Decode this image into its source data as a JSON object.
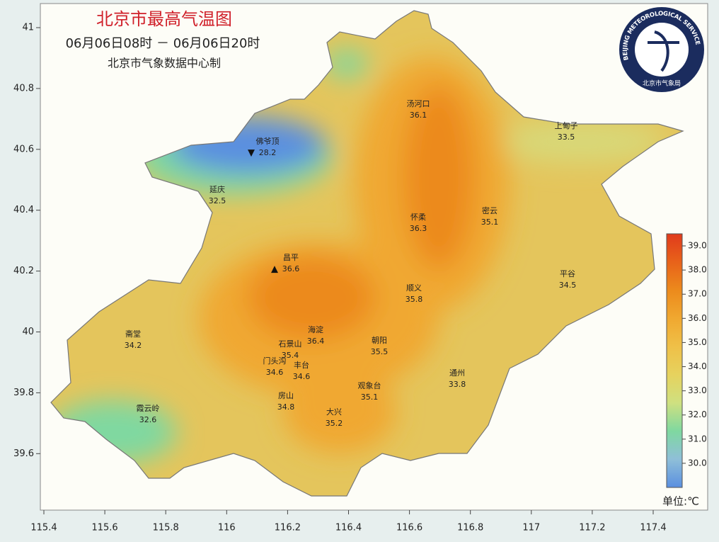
{
  "map": {
    "title": "北京市最高气温图",
    "period": "06月06日08时 － 06月06日20时",
    "producer": "北京市气象数据中心制",
    "xticks": [
      115.4,
      115.6,
      115.8,
      116,
      116.2,
      116.4,
      116.6,
      116.8,
      117,
      117.2,
      117.4
    ],
    "yticks": [
      41,
      40.8,
      40.6,
      40.4,
      40.2,
      40,
      39.8,
      39.6
    ],
    "stations": [
      {
        "name": "汤河口",
        "value": 36.1
      },
      {
        "name": "上甸子",
        "value": 33.5
      },
      {
        "name": "佛爷顶",
        "value": 28.2,
        "marker": "▼"
      },
      {
        "name": "延庆",
        "value": 32.5
      },
      {
        "name": "怀柔",
        "value": 36.3
      },
      {
        "name": "密云",
        "value": 35.1
      },
      {
        "name": "昌平",
        "value": 36.6,
        "marker": "▲"
      },
      {
        "name": "平谷",
        "value": 34.5
      },
      {
        "name": "顺义",
        "value": 35.8
      },
      {
        "name": "斋堂",
        "value": 34.2
      },
      {
        "name": "海淀",
        "value": 36.4
      },
      {
        "name": "朝阳",
        "value": 35.5
      },
      {
        "name": "石景山",
        "value": 35.4
      },
      {
        "name": "门头沟",
        "value": 34.6
      },
      {
        "name": "丰台",
        "value": 34.6
      },
      {
        "name": "通州",
        "value": 33.8
      },
      {
        "name": "观象台",
        "value": 35.1
      },
      {
        "name": "房山",
        "value": 34.8
      },
      {
        "name": "霞云岭",
        "value": 32.6
      },
      {
        "name": "大兴",
        "value": 35.2
      }
    ],
    "legend": {
      "lim": [
        29,
        39.5
      ],
      "ticks": [
        {
          "value": 39,
          "label": "39.0"
        },
        {
          "value": 38,
          "label": "38.0"
        },
        {
          "value": 37,
          "label": "37.0"
        },
        {
          "value": 36,
          "label": "36.0"
        },
        {
          "value": 35,
          "label": "35.0"
        },
        {
          "value": 34,
          "label": "34.0"
        },
        {
          "value": 33,
          "label": "33.0"
        },
        {
          "value": 32,
          "label": "32.0"
        },
        {
          "value": 31,
          "label": "31.0"
        },
        {
          "value": 30,
          "label": "30.0"
        }
      ],
      "colors": [
        "#e03a1c",
        "#e8621a",
        "#ec8a1c",
        "#f0a830",
        "#efc048",
        "#e6d25e",
        "#cfe080",
        "#7fd8a0",
        "#8fbfd8",
        "#5a8fe0"
      ],
      "unit": "单位:℃"
    },
    "logo": {
      "text": "BEIJING METEOROLOGICAL SERVICE",
      "subtext": "北京市气象局"
    }
  }
}
